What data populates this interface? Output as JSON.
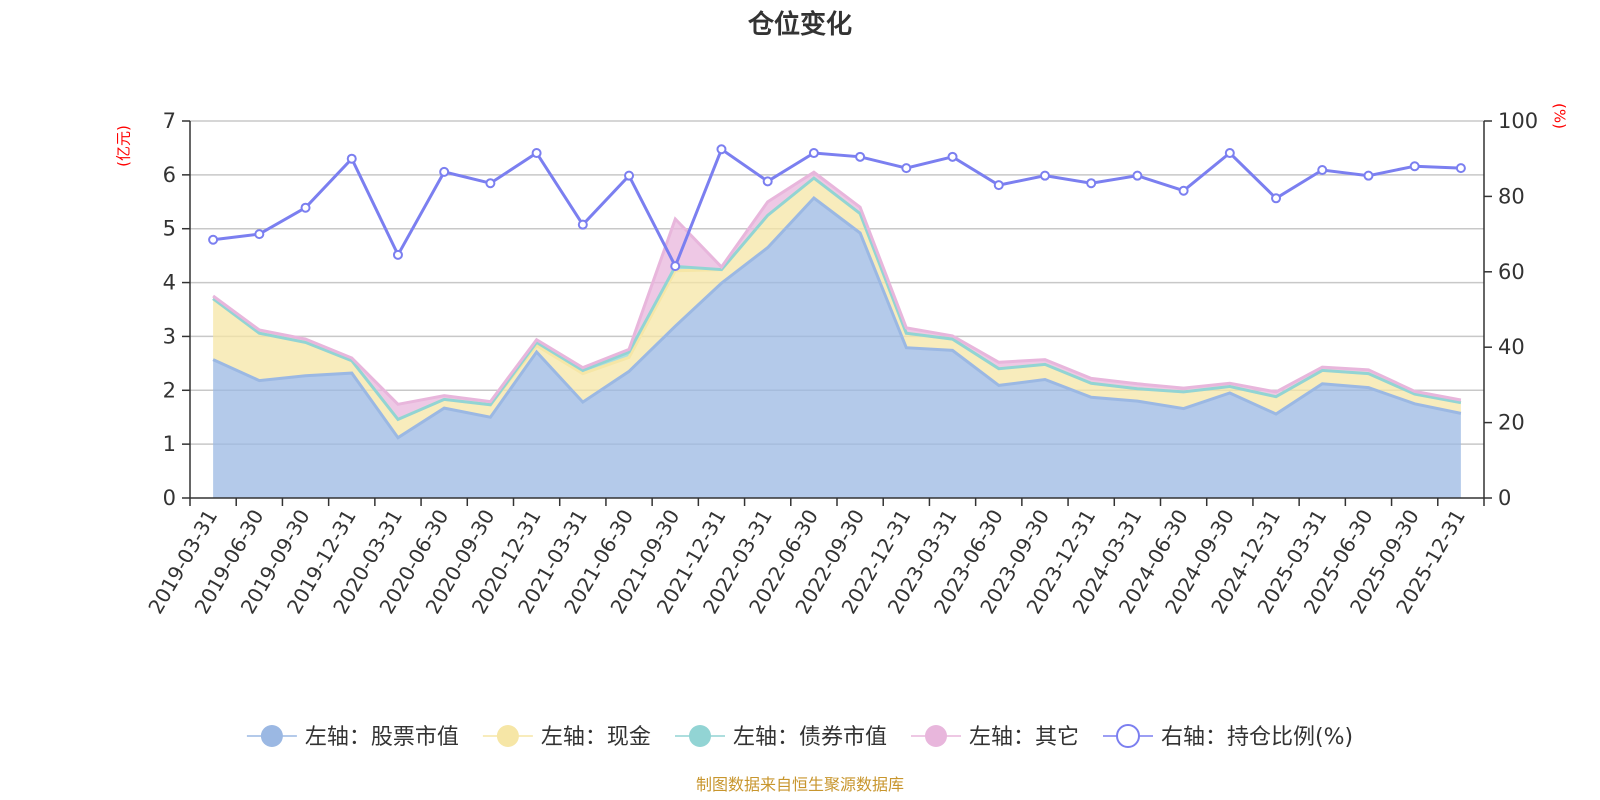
{
  "chart_data": {
    "type": "area",
    "title": "仓位变化",
    "left_unit": "(亿元)",
    "right_unit": "(%)",
    "left_ylim": [
      0,
      7
    ],
    "left_ticks": [
      "0",
      "1",
      "2",
      "3",
      "4",
      "5",
      "6",
      "7"
    ],
    "right_ylim": [
      0,
      100
    ],
    "right_ticks": [
      "0",
      "20",
      "40",
      "60",
      "80",
      "100"
    ],
    "categories": [
      "2019-03-31",
      "2019-06-30",
      "2019-09-30",
      "2019-12-31",
      "2020-03-31",
      "2020-06-30",
      "2020-09-30",
      "2020-12-31",
      "2021-03-31",
      "2021-06-30",
      "2021-09-30",
      "2021-12-31",
      "2022-03-31",
      "2022-06-30",
      "2022-09-30",
      "2022-12-31",
      "2023-03-31",
      "2023-06-30",
      "2023-09-30",
      "2023-12-31",
      "2024-03-31",
      "2024-06-30",
      "2024-09-30",
      "2024-12-31",
      "2025-03-31",
      "2025-06-30",
      "2025-09-30",
      "2025-12-31"
    ],
    "series": [
      {
        "name": "左轴：股票市值",
        "axis": "left",
        "stack": true,
        "color": "#9bb8e3",
        "values": [
          2.57,
          2.18,
          2.27,
          2.32,
          1.12,
          1.67,
          1.5,
          2.71,
          1.78,
          2.35,
          3.19,
          3.99,
          4.65,
          5.57,
          4.92,
          2.79,
          2.74,
          2.09,
          2.2,
          1.87,
          1.8,
          1.66,
          1.95,
          1.56,
          2.12,
          2.05,
          1.75,
          1.57
        ]
      },
      {
        "name": "左轴：现金",
        "axis": "left",
        "stack": true,
        "color": "#f6e6a6",
        "values": [
          1.13,
          0.88,
          0.62,
          0.23,
          0.34,
          0.16,
          0.23,
          0.12,
          0.53,
          0.26,
          1.03,
          0.25,
          0.6,
          0.37,
          0.36,
          0.27,
          0.21,
          0.31,
          0.28,
          0.26,
          0.23,
          0.31,
          0.12,
          0.32,
          0.25,
          0.26,
          0.18,
          0.2
        ]
      },
      {
        "name": "左轴：债券市值",
        "axis": "left",
        "stack": true,
        "color": "#92d4d4",
        "values": [
          0,
          0,
          0,
          0,
          0,
          0,
          0,
          0.06,
          0.06,
          0.1,
          0.08,
          0,
          0,
          0,
          0,
          0,
          0,
          0,
          0,
          0,
          0,
          0,
          0,
          0,
          0,
          0,
          0,
          0
        ]
      },
      {
        "name": "左轴：其它",
        "axis": "left",
        "stack": true,
        "color": "#e8b6dc",
        "values": [
          0.05,
          0.06,
          0.06,
          0.05,
          0.28,
          0.07,
          0.06,
          0.05,
          0.05,
          0.05,
          0.88,
          0.05,
          0.25,
          0.11,
          0.12,
          0.1,
          0.06,
          0.12,
          0.09,
          0.09,
          0.09,
          0.07,
          0.06,
          0.09,
          0.06,
          0.07,
          0.05,
          0.05
        ]
      },
      {
        "name": "右轴：持仓比例(%)",
        "axis": "right",
        "stack": false,
        "color": "#7b7ff0",
        "values": [
          68.5,
          70.0,
          77.0,
          90.0,
          64.5,
          86.5,
          83.5,
          91.5,
          72.5,
          85.5,
          61.5,
          92.5,
          84.0,
          91.5,
          90.5,
          87.5,
          90.5,
          83.0,
          85.5,
          83.5,
          85.5,
          81.5,
          91.5,
          79.5,
          87.0,
          85.5,
          88.0,
          87.5
        ]
      }
    ],
    "legend_position": "bottom",
    "grid": true
  },
  "footer": {
    "source": "制图数据来自恒生聚源数据库"
  }
}
